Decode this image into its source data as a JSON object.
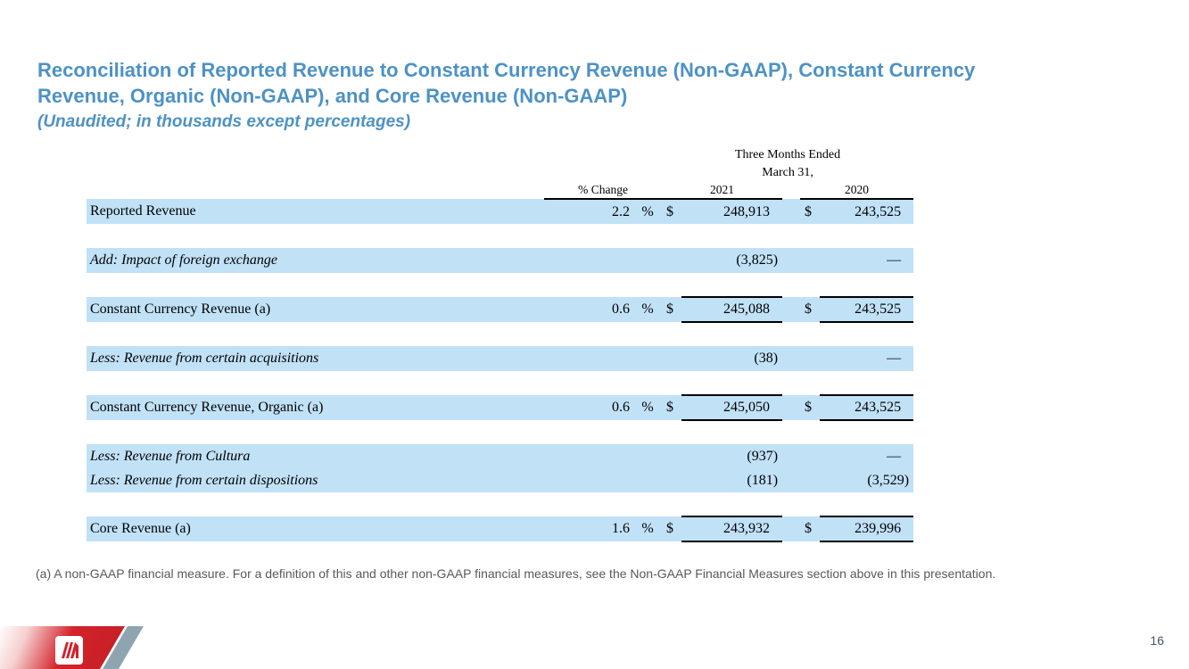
{
  "title": {
    "lines": [
      "Reconciliation of Reported Revenue to Constant Currency Revenue (Non-GAAP), Constant Currency",
      "Revenue, Organic (Non-GAAP), and Core Revenue (Non-GAAP)"
    ],
    "subtitle": "(Unaudited; in thousands except percentages)",
    "accent_color": "#4d92c4"
  },
  "table": {
    "group_header_line1": "Three Months Ended",
    "group_header_line2": "March 31,",
    "columns": {
      "pct_change": "% Change",
      "year_2021": "2021",
      "year_2020": "2020"
    },
    "row_band_color": "#c1e1f7",
    "rows": [
      {
        "label": "Reported Revenue",
        "italic": false,
        "pct": "2.2",
        "pct_sign": "%",
        "dollar_2021": "$",
        "val_2021": "248,913",
        "dollar_2020": "$",
        "val_2020": "243,525",
        "total": false,
        "gap_before": false
      },
      {
        "label": "Add: Impact of foreign exchange",
        "italic": true,
        "pct": "",
        "pct_sign": "",
        "dollar_2021": "",
        "val_2021": "(3,825)",
        "dollar_2020": "",
        "val_2020": "—",
        "total": false,
        "gap_before": true
      },
      {
        "label": "Constant Currency Revenue (a)",
        "italic": false,
        "pct": "0.6",
        "pct_sign": "%",
        "dollar_2021": "$",
        "val_2021": "245,088",
        "dollar_2020": "$",
        "val_2020": "243,525",
        "total": true,
        "gap_before": true
      },
      {
        "label": "Less: Revenue from certain acquisitions",
        "italic": true,
        "pct": "",
        "pct_sign": "",
        "dollar_2021": "",
        "val_2021": "(38)",
        "dollar_2020": "",
        "val_2020": "—",
        "total": false,
        "gap_before": true
      },
      {
        "label": "Constant Currency Revenue, Organic (a)",
        "italic": false,
        "pct": "0.6",
        "pct_sign": "%",
        "dollar_2021": "$",
        "val_2021": "245,050",
        "dollar_2020": "$",
        "val_2020": "243,525",
        "total": true,
        "gap_before": true
      },
      {
        "label": "Less: Revenue from Cultura",
        "italic": true,
        "pct": "",
        "pct_sign": "",
        "dollar_2021": "",
        "val_2021": "(937)",
        "dollar_2020": "",
        "val_2020": "—",
        "total": false,
        "gap_before": true,
        "half": true
      },
      {
        "label": "Less: Revenue from certain dispositions",
        "italic": true,
        "pct": "",
        "pct_sign": "",
        "dollar_2021": "",
        "val_2021": "(181)",
        "dollar_2020": "",
        "val_2020": "(3,529)",
        "total": false,
        "gap_before": false,
        "half": true
      },
      {
        "label": "Core Revenue (a)",
        "italic": false,
        "pct": "1.6",
        "pct_sign": "%",
        "dollar_2021": "$",
        "val_2021": "243,932",
        "dollar_2020": "$",
        "val_2020": "239,996",
        "total": true,
        "gap_before": true
      }
    ]
  },
  "footnote": "(a) A non-GAAP financial measure. For a definition of this and other non-GAAP financial measures, see the Non-GAAP Financial Measures section above in this presentation.",
  "footer": {
    "page_number": "16",
    "logo_red": "#d2232a",
    "logo_gray_slash": "#8ea5b1"
  }
}
